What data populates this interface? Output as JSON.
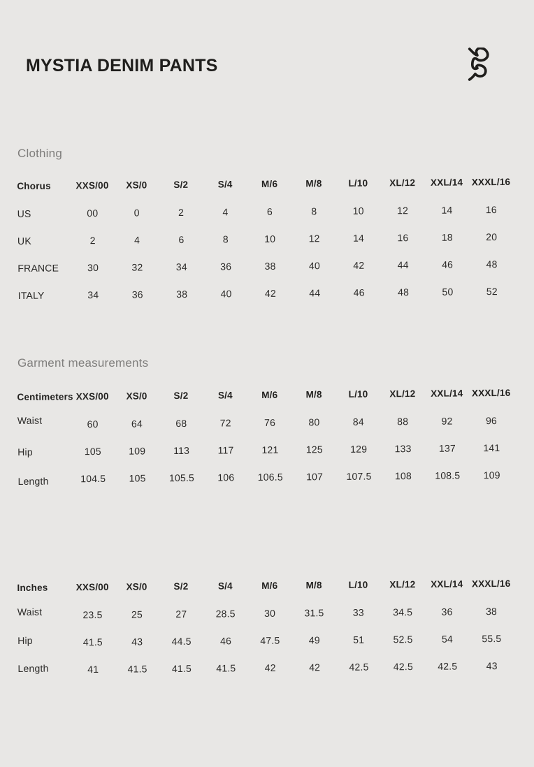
{
  "header": {
    "title": "MYSTIA DENIM PANTS",
    "logo_icon": "brand-script-logo"
  },
  "colors": {
    "background": "#e8e7e5",
    "text": "#242321",
    "muted_heading": "#7f7e7c"
  },
  "sections": {
    "clothing": {
      "heading": "Clothing",
      "table": {
        "label_header": "Chorus",
        "size_headers": [
          "XXS/00",
          "XS/0",
          "S/2",
          "S/4",
          "M/6",
          "M/8",
          "L/10",
          "XL/12",
          "XXL/14",
          "XXXL/16"
        ],
        "rows": [
          {
            "label": "US",
            "values": [
              "00",
              "0",
              "2",
              "4",
              "6",
              "8",
              "10",
              "12",
              "14",
              "16"
            ]
          },
          {
            "label": "UK",
            "values": [
              "2",
              "4",
              "6",
              "8",
              "10",
              "12",
              "14",
              "16",
              "18",
              "20"
            ]
          },
          {
            "label": "FRANCE",
            "values": [
              "30",
              "32",
              "34",
              "36",
              "38",
              "40",
              "42",
              "44",
              "46",
              "48"
            ]
          },
          {
            "label": "ITALY",
            "values": [
              "34",
              "36",
              "38",
              "40",
              "42",
              "44",
              "46",
              "48",
              "50",
              "52"
            ]
          }
        ]
      }
    },
    "garment": {
      "heading": "Garment measurements",
      "centimeters": {
        "label_header": "Centimeters",
        "size_headers": [
          "XXS/00",
          "XS/0",
          "S/2",
          "S/4",
          "M/6",
          "M/8",
          "L/10",
          "XL/12",
          "XXL/14",
          "XXXL/16"
        ],
        "rows": [
          {
            "label": "Waist",
            "values": [
              "60",
              "64",
              "68",
              "72",
              "76",
              "80",
              "84",
              "88",
              "92",
              "96"
            ]
          },
          {
            "label": "Hip",
            "values": [
              "105",
              "109",
              "113",
              "117",
              "121",
              "125",
              "129",
              "133",
              "137",
              "141"
            ]
          },
          {
            "label": "Length",
            "values": [
              "104.5",
              "105",
              "105.5",
              "106",
              "106.5",
              "107",
              "107.5",
              "108",
              "108.5",
              "109"
            ]
          }
        ]
      },
      "inches": {
        "label_header": "Inches",
        "size_headers": [
          "XXS/00",
          "XS/0",
          "S/2",
          "S/4",
          "M/6",
          "M/8",
          "L/10",
          "XL/12",
          "XXL/14",
          "XXXL/16"
        ],
        "rows": [
          {
            "label": "Waist",
            "values": [
              "23.5",
              "25",
              "27",
              "28.5",
              "30",
              "31.5",
              "33",
              "34.5",
              "36",
              "38"
            ]
          },
          {
            "label": "Hip",
            "values": [
              "41.5",
              "43",
              "44.5",
              "46",
              "47.5",
              "49",
              "51",
              "52.5",
              "54",
              "55.5"
            ]
          },
          {
            "label": "Length",
            "values": [
              "41",
              "41.5",
              "41.5",
              "41.5",
              "42",
              "42",
              "42.5",
              "42.5",
              "42.5",
              "43"
            ]
          }
        ]
      }
    }
  }
}
